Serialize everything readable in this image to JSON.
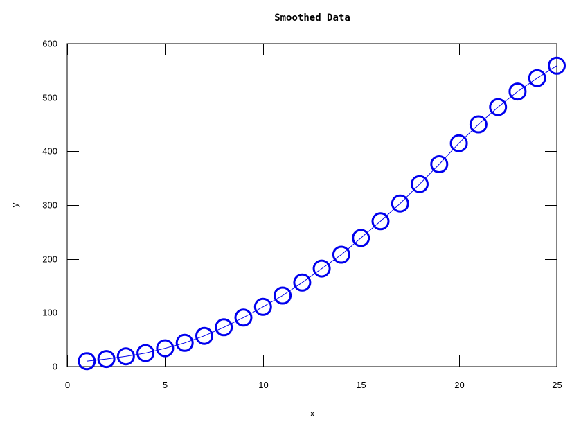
{
  "chart_data": {
    "type": "line",
    "title": "Smoothed Data",
    "xlabel": "x",
    "ylabel": "y",
    "xlim": [
      0,
      25
    ],
    "ylim": [
      0,
      600
    ],
    "xticks": [
      0,
      5,
      10,
      15,
      20,
      25
    ],
    "yticks": [
      0,
      100,
      200,
      300,
      400,
      500,
      600
    ],
    "xtick_labels": [
      "0",
      "5",
      "10",
      "15",
      "20",
      "25"
    ],
    "ytick_labels": [
      "0",
      "100",
      "200",
      "300",
      "400",
      "500",
      "600"
    ],
    "grid": false,
    "legend": "none",
    "series": [
      {
        "marker": "circle",
        "color": "#0000ee",
        "x": [
          1,
          2,
          3,
          4,
          5,
          6,
          7,
          8,
          9,
          10,
          11,
          12,
          13,
          14,
          15,
          16,
          17,
          18,
          19,
          20,
          21,
          22,
          23,
          24,
          25
        ],
        "y": [
          10,
          14,
          19,
          25,
          34,
          44,
          57,
          73,
          91,
          111,
          132,
          156,
          182,
          208,
          239,
          270,
          303,
          339,
          376,
          415,
          450,
          482,
          511,
          536,
          559
        ]
      }
    ]
  }
}
